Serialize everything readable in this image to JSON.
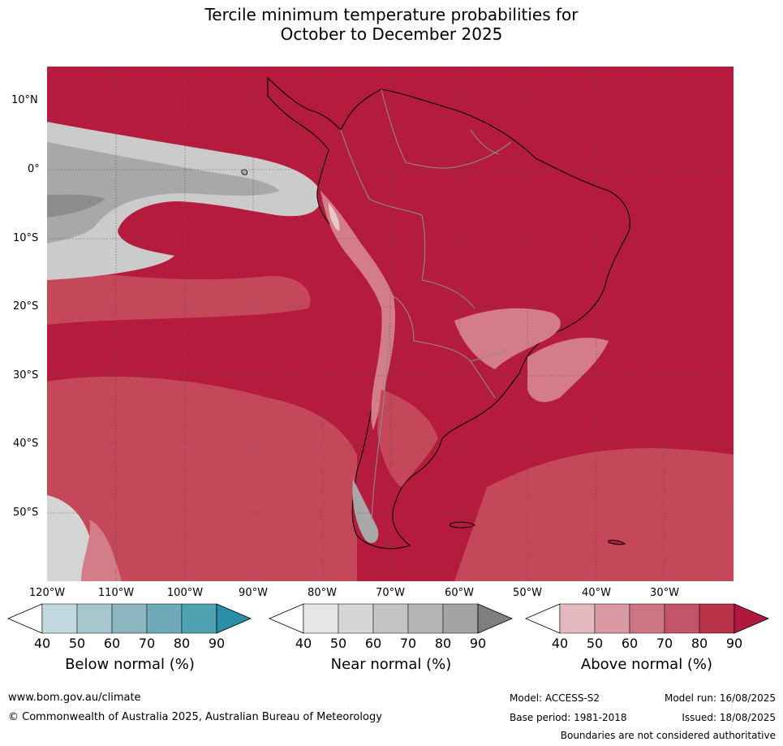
{
  "title_line1": "Tercile minimum temperature probabilities for",
  "title_line2": "October to December 2025",
  "map": {
    "lat_labels": [
      "10°N",
      "0°",
      "10°S",
      "20°S",
      "30°S",
      "40°S",
      "50°S"
    ],
    "lon_labels": [
      "120°W",
      "110°W",
      "100°W",
      "90°W",
      "80°W",
      "70°W",
      "60°W",
      "50°W",
      "40°W",
      "30°W"
    ],
    "colors": {
      "ocean_deep": "#b51b3c",
      "ocean_mid": "#c4475a",
      "ocean_light": "#d57c89",
      "near_normal": "#a8a8a8",
      "near_light": "#cbcbcb",
      "land_grey": "#8a8a8a",
      "borders": "#8c8c8c",
      "coast": "#000000"
    }
  },
  "colorbars": [
    {
      "title": "Below normal (%)",
      "ticks": [
        "40",
        "50",
        "60",
        "70",
        "80",
        "90"
      ],
      "colors": [
        "#ffffff",
        "#c0d8de",
        "#a6c7ce",
        "#8bb6c0",
        "#6eaab8",
        "#4ea2b2",
        "#2a8ea6"
      ]
    },
    {
      "title": "Near normal (%)",
      "ticks": [
        "40",
        "50",
        "60",
        "70",
        "80",
        "90"
      ],
      "colors": [
        "#ffffff",
        "#e6e6e6",
        "#d6d6d6",
        "#c4c4c4",
        "#b4b4b4",
        "#a4a4a4",
        "#7f7f7f"
      ]
    },
    {
      "title": "Above normal (%)",
      "ticks": [
        "40",
        "50",
        "60",
        "70",
        "80",
        "90"
      ],
      "colors": [
        "#ffffff",
        "#e3b9bf",
        "#d99aa3",
        "#cc7683",
        "#c25668",
        "#b83248",
        "#b0193d"
      ]
    }
  ],
  "footer": {
    "website": "www.bom.gov.au/climate",
    "copyright": "© Commonwealth of Australia 2025, Australian Bureau of Meteorology",
    "model": "Model: ACCESS-S2",
    "base_period": "Base period: 1981-2018",
    "model_run": "Model run: 16/08/2025",
    "issued": "Issued: 18/08/2025",
    "disclaimer": "Boundaries are not considered authoritative"
  }
}
